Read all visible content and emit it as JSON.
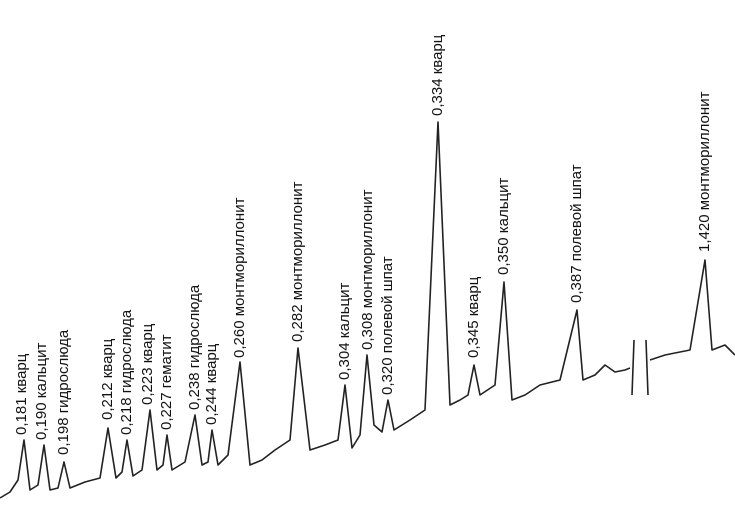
{
  "chart_data": {
    "type": "diffractogram",
    "peaks": [
      {
        "label": "0,181 кварц"
      },
      {
        "label": "0,190 кальцит"
      },
      {
        "label": "0,198 гидрослюда"
      },
      {
        "label": "0,212 кварц"
      },
      {
        "label": "0,218 гидрослюда"
      },
      {
        "label": "0,223 кварц"
      },
      {
        "label": "0,227 гематит"
      },
      {
        "label": "0,238 гидрослюда"
      },
      {
        "label": "0,244 кварц"
      },
      {
        "label": "0,260 монтмориллонит"
      },
      {
        "label": "0,282 монтмориллонит"
      },
      {
        "label": "0,304 кальцит"
      },
      {
        "label": "0,308 монтмориллонит"
      },
      {
        "label": "0,320 полевой шпат"
      },
      {
        "label": "0,334 кварц"
      },
      {
        "label": "0,345 кварц"
      },
      {
        "label": "0,350 кальцит"
      },
      {
        "label": "0,387 полевой шпат"
      },
      {
        "label": "1,420 монтмориллонит"
      }
    ]
  }
}
